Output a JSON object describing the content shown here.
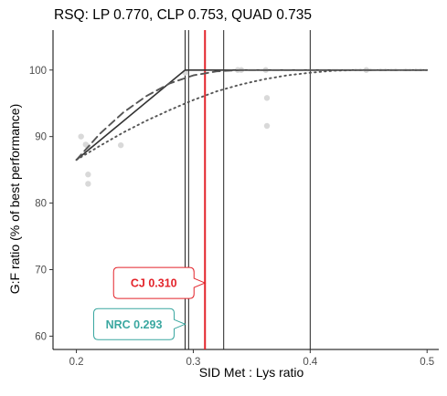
{
  "chart_data": {
    "type": "scatter",
    "title": "RSQ: LP 0.770, CLP 0.753, QUAD 0.735",
    "xlabel": "SID Met : Lys ratio",
    "ylabel": "G:F ratio (% of best performance)",
    "xlim": [
      0.18,
      0.51
    ],
    "ylim": [
      58,
      106
    ],
    "x_ticks": [
      0.2,
      0.3,
      0.4,
      0.5
    ],
    "x_tick_labels": [
      "0.2",
      "0.3",
      "0.4",
      "0.5"
    ],
    "y_ticks": [
      60,
      70,
      80,
      90,
      100
    ],
    "y_tick_labels": [
      "60",
      "70",
      "80",
      "90",
      "100"
    ],
    "grid": false,
    "points": {
      "color": "#d9d9d9",
      "data": [
        {
          "x": 0.204,
          "y": 90.0
        },
        {
          "x": 0.208,
          "y": 88.8
        },
        {
          "x": 0.21,
          "y": 88.5
        },
        {
          "x": 0.21,
          "y": 84.3
        },
        {
          "x": 0.21,
          "y": 82.9
        },
        {
          "x": 0.238,
          "y": 88.7
        },
        {
          "x": 0.293,
          "y": 99.6
        },
        {
          "x": 0.338,
          "y": 100.0
        },
        {
          "x": 0.341,
          "y": 100.0
        },
        {
          "x": 0.362,
          "y": 100.0
        },
        {
          "x": 0.363,
          "y": 95.8
        },
        {
          "x": 0.363,
          "y": 91.6
        },
        {
          "x": 0.448,
          "y": 100.0
        }
      ]
    },
    "series": [
      {
        "style": "solid",
        "color": "#333333",
        "x": [
          0.2,
          0.293,
          0.5
        ],
        "y": [
          86.5,
          100.0,
          100.0
        ]
      },
      {
        "style": "dashed",
        "color": "#555555",
        "x": [
          0.2,
          0.22,
          0.24,
          0.26,
          0.28,
          0.3,
          0.32,
          0.34,
          0.5
        ],
        "y": [
          86.5,
          90.4,
          93.6,
          96.1,
          98.0,
          99.2,
          99.8,
          100.0,
          100.0
        ]
      },
      {
        "style": "dotted",
        "color": "#555555",
        "x": [
          0.2,
          0.22,
          0.24,
          0.26,
          0.28,
          0.3,
          0.32,
          0.34,
          0.36,
          0.38,
          0.4,
          0.42,
          0.44,
          0.46,
          0.48,
          0.5
        ],
        "y": [
          86.5,
          88.6,
          90.6,
          92.4,
          94.0,
          95.5,
          96.8,
          97.8,
          98.6,
          99.2,
          99.6,
          99.9,
          100.0,
          100.0,
          100.0,
          100.0
        ]
      }
    ],
    "vlines": [
      {
        "x": 0.293,
        "color": "#222222"
      },
      {
        "x": 0.296,
        "color": "#222222"
      },
      {
        "x": 0.31,
        "color": "#e3242b",
        "emphasis": true
      },
      {
        "x": 0.326,
        "color": "#222222"
      },
      {
        "x": 0.4,
        "color": "#222222"
      }
    ],
    "annotations": [
      {
        "text": "CJ 0.310",
        "x": 0.31,
        "y": 68,
        "color": "#e3242b"
      },
      {
        "text": "NRC 0.293",
        "x": 0.293,
        "y": 61.8,
        "color": "#3aa7a0"
      }
    ]
  }
}
